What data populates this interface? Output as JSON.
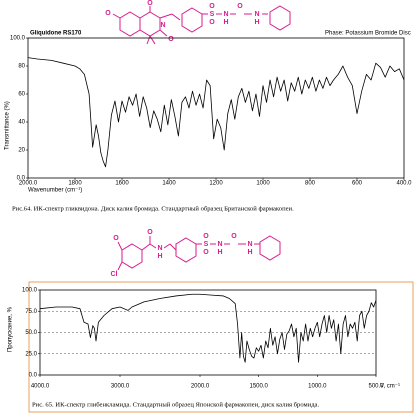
{
  "chart_data": [
    {
      "type": "line",
      "title": "Gliquidone RS170",
      "subtitle": "Phase:  Potassium Bromide Disc",
      "x_label": "Wavenumber (cm⁻¹)",
      "y_label": "Transmittance (%)",
      "caption": "Рис.64. ИК-спектр гликвидона. Диск калия бромида. Стандартный образец Британской фармакопеи.",
      "structure_labels": [
        "O",
        "O",
        "N",
        "O",
        "O",
        "S",
        "O",
        "N",
        "H",
        "O",
        "N",
        "H"
      ],
      "xlim": [
        2000,
        400
      ],
      "ylim": [
        0,
        100
      ],
      "xticks": [
        {
          "value": 2000,
          "label": "2000.0"
        },
        1800,
        1600,
        1400,
        1200,
        1000,
        800,
        600,
        {
          "value": 400,
          "label": "400.0"
        }
      ],
      "yticks": [
        {
          "value": 0,
          "label": "0.0"
        },
        20,
        40,
        60,
        80,
        {
          "value": 100,
          "label": "100.0"
        }
      ],
      "grid": false,
      "color": "#000000",
      "x": [
        2000,
        1960,
        1900,
        1850,
        1800,
        1780,
        1760,
        1740,
        1725,
        1710,
        1700,
        1690,
        1680,
        1670,
        1660,
        1645,
        1630,
        1615,
        1600,
        1585,
        1570,
        1555,
        1540,
        1525,
        1510,
        1495,
        1480,
        1465,
        1450,
        1435,
        1420,
        1405,
        1390,
        1375,
        1360,
        1345,
        1330,
        1315,
        1300,
        1285,
        1270,
        1255,
        1240,
        1225,
        1210,
        1195,
        1180,
        1165,
        1150,
        1135,
        1120,
        1105,
        1090,
        1075,
        1060,
        1045,
        1030,
        1015,
        1000,
        985,
        970,
        955,
        940,
        925,
        910,
        895,
        880,
        865,
        850,
        835,
        820,
        805,
        790,
        775,
        760,
        745,
        730,
        715,
        700,
        680,
        660,
        640,
        620,
        600,
        580,
        560,
        540,
        520,
        500,
        480,
        460,
        440,
        420,
        400
      ],
      "values": [
        86,
        85,
        84,
        82,
        80,
        78,
        74,
        60,
        22,
        38,
        30,
        18,
        12,
        8,
        20,
        45,
        55,
        40,
        55,
        47,
        58,
        52,
        60,
        44,
        58,
        50,
        36,
        48,
        42,
        33,
        52,
        38,
        56,
        44,
        30,
        54,
        58,
        50,
        62,
        52,
        60,
        50,
        70,
        66,
        28,
        42,
        36,
        20,
        46,
        56,
        42,
        58,
        64,
        54,
        62,
        48,
        60,
        44,
        66,
        54,
        70,
        58,
        72,
        62,
        70,
        55,
        68,
        62,
        72,
        60,
        70,
        64,
        72,
        62,
        70,
        64,
        72,
        66,
        70,
        74,
        80,
        72,
        66,
        46,
        62,
        74,
        70,
        82,
        79,
        72,
        80,
        76,
        78,
        70
      ]
    },
    {
      "type": "line",
      "y_label": "Пропускание, %",
      "x_label": "V, cm⁻¹",
      "caption": "Рис. 65. ИК-спектр глибенкламида. Стандартный образец Японской фармакопеи, диск калия бромида.",
      "structure_labels": [
        "O",
        "O",
        "N",
        "H",
        "Cl",
        "O",
        "S",
        "O",
        "N",
        "H",
        "O",
        "N",
        "H"
      ],
      "xlim": [
        4000,
        500
      ],
      "xscale_break": 2000,
      "ylim": [
        0,
        100
      ],
      "xticks": [
        {
          "value": 4000,
          "label": "4000.0"
        },
        {
          "value": 3000,
          "label": "3000.0"
        },
        {
          "value": 2000,
          "label": "2000.0"
        },
        {
          "value": 1500,
          "label": "1500.0"
        },
        {
          "value": 1000,
          "label": "1000.0"
        },
        {
          "value": 500,
          "label": "500.0"
        }
      ],
      "yticks": [
        {
          "value": 0,
          "label": "0.0"
        },
        {
          "value": 25,
          "label": "25.0"
        },
        {
          "value": 50,
          "label": "50.0"
        },
        {
          "value": 75,
          "label": "75.0"
        },
        {
          "value": 100,
          "label": "100.0"
        }
      ],
      "grid": true,
      "color": "#000000",
      "x": [
        4000,
        3800,
        3600,
        3500,
        3450,
        3400,
        3370,
        3340,
        3320,
        3300,
        3270,
        3200,
        3100,
        3000,
        2900,
        2850,
        2700,
        2500,
        2300,
        2100,
        2000,
        1900,
        1800,
        1750,
        1700,
        1680,
        1660,
        1645,
        1630,
        1615,
        1600,
        1580,
        1560,
        1540,
        1520,
        1500,
        1480,
        1460,
        1440,
        1420,
        1400,
        1380,
        1360,
        1340,
        1320,
        1300,
        1280,
        1260,
        1240,
        1220,
        1200,
        1180,
        1160,
        1140,
        1120,
        1100,
        1080,
        1060,
        1040,
        1020,
        1000,
        980,
        960,
        940,
        920,
        900,
        880,
        860,
        840,
        820,
        800,
        780,
        760,
        740,
        720,
        700,
        680,
        660,
        640,
        620,
        600,
        580,
        560,
        540,
        520,
        500
      ],
      "values": [
        78,
        80,
        80,
        78,
        62,
        60,
        44,
        58,
        55,
        40,
        62,
        70,
        78,
        80,
        76,
        80,
        86,
        90,
        93,
        95,
        95,
        94,
        93,
        90,
        84,
        60,
        20,
        50,
        22,
        15,
        40,
        30,
        22,
        20,
        32,
        28,
        35,
        20,
        40,
        32,
        55,
        35,
        45,
        25,
        42,
        50,
        30,
        48,
        52,
        60,
        45,
        55,
        15,
        50,
        40,
        60,
        40,
        55,
        45,
        55,
        62,
        45,
        60,
        70,
        50,
        70,
        55,
        65,
        40,
        60,
        25,
        60,
        70,
        45,
        60,
        55,
        62,
        40,
        70,
        75,
        55,
        70,
        75,
        85,
        80,
        88
      ]
    }
  ]
}
